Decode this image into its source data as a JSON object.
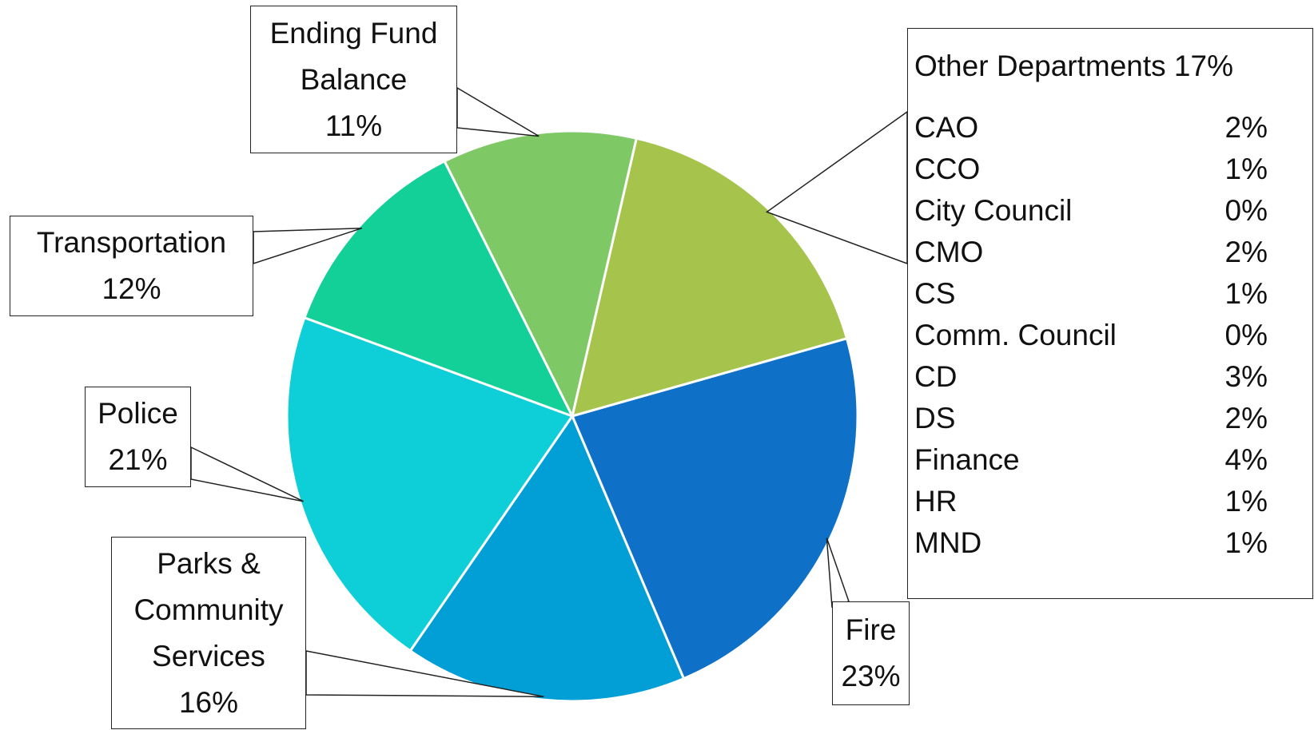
{
  "chart_data": {
    "type": "pie",
    "categories": [
      "Other Departments",
      "Fire",
      "Parks & Community Services",
      "Police",
      "Transportation",
      "Ending Fund Balance"
    ],
    "values": [
      17,
      23,
      16,
      21,
      12,
      11
    ],
    "value_labels": [
      "17%",
      "23%",
      "16%",
      "21%",
      "12%",
      "11%"
    ],
    "colors": [
      "#a6c34c",
      "#0f70c8",
      "#029fd6",
      "#0ecfd8",
      "#13cf98",
      "#7ec965"
    ],
    "breakdown": {
      "categories": [
        "CAO",
        "CCO",
        "City Council",
        "CMO",
        "CS",
        "Comm. Council",
        "CD",
        "DS",
        "Finance",
        "HR",
        "MND"
      ],
      "values": [
        2,
        1,
        0,
        2,
        1,
        0,
        3,
        2,
        4,
        1,
        1
      ],
      "value_labels": [
        "2%",
        "1%",
        "0%",
        "2%",
        "1%",
        "0%",
        "3%",
        "2%",
        "4%",
        "1%",
        "1%"
      ]
    }
  }
}
